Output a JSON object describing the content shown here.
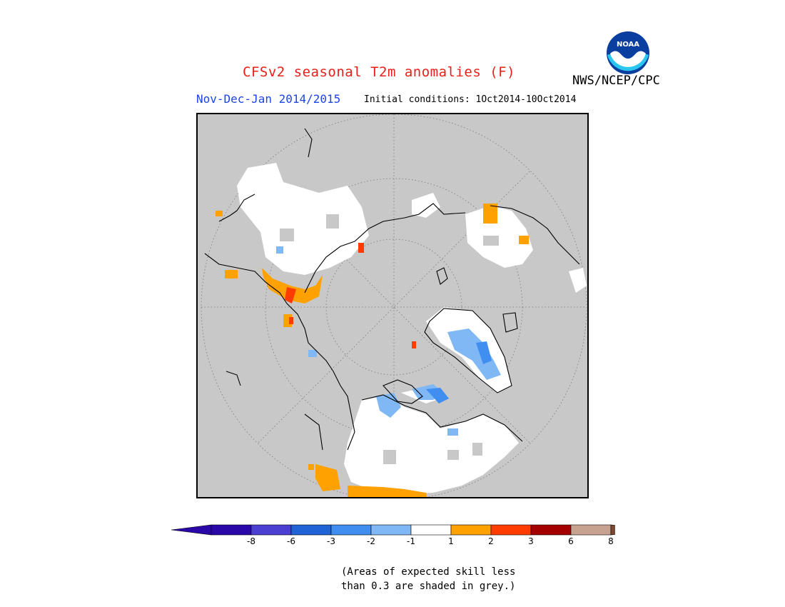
{
  "title": "CFSv2 seasonal T2m anomalies (F)",
  "period": "Nov-Dec-Jan 2014/2015",
  "initial_conditions": "Initial conditions: 1Oct2014-10Oct2014",
  "agency": "NWS/NCEP/CPC",
  "logo_text": "NOAA",
  "colors": {
    "title": "#e8201a",
    "period": "#1c45e6",
    "skill_mask": "#c8c8c8"
  },
  "legend": {
    "levels": [
      {
        "label": "-8",
        "color": "#2a08a8"
      },
      {
        "label": "-6",
        "color": "#4a3fd0"
      },
      {
        "label": "-3",
        "color": "#1f63d6"
      },
      {
        "label": "-2",
        "color": "#3f8ef0"
      },
      {
        "label": "-1",
        "color": "#7fb8f4"
      },
      {
        "label": "1",
        "color": "#ffffff"
      },
      {
        "label": "2",
        "color": "#ffa100"
      },
      {
        "label": "3",
        "color": "#ff3c00"
      },
      {
        "label": "6",
        "color": "#a50000"
      },
      {
        "label": "8",
        "color": "#c8a290"
      }
    ],
    "above_max_color": "#7a4a34"
  },
  "note": {
    "line1": "(Areas of expected skill less",
    "line2": "than 0.3 are shaded in grey.)"
  }
}
